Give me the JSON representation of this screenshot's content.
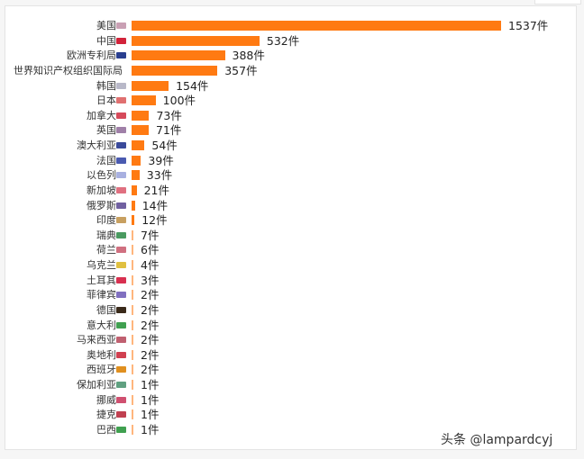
{
  "chart_data": {
    "type": "bar",
    "orientation": "horizontal",
    "title": "",
    "xlabel": "",
    "ylabel": "",
    "unit": "件",
    "categories": [
      "美国",
      "中国",
      "欧洲专利局",
      "世界知识产权组织国际局",
      "韩国",
      "日本",
      "加拿大",
      "英国",
      "澳大利亚",
      "法国",
      "以色列",
      "新加坡",
      "俄罗斯",
      "印度",
      "瑞典",
      "荷兰",
      "乌克兰",
      "土耳其",
      "菲律宾",
      "德国",
      "意大利",
      "马来西亚",
      "奥地利",
      "西班牙",
      "保加利亚",
      "挪威",
      "捷克",
      "巴西"
    ],
    "values": [
      1537,
      532,
      388,
      357,
      154,
      100,
      73,
      71,
      54,
      39,
      33,
      21,
      14,
      12,
      7,
      6,
      4,
      3,
      2,
      2,
      2,
      2,
      2,
      2,
      1,
      1,
      1,
      1
    ],
    "value_labels": [
      "1537件",
      "532件",
      "388件",
      "357件",
      "154件",
      "100件",
      "73件",
      "71件",
      "54件",
      "39件",
      "33件",
      "21件",
      "14件",
      "12件",
      "7件",
      "6件",
      "4件",
      "3件",
      "2件",
      "2件",
      "2件",
      "2件",
      "2件",
      "2件",
      "1件",
      "1件",
      "1件",
      "1件"
    ],
    "flags": [
      "us-flag-icon",
      "cn-flag-icon",
      "eu-flag-icon",
      "",
      "kr-flag-icon",
      "jp-flag-icon",
      "ca-flag-icon",
      "gb-flag-icon",
      "au-flag-icon",
      "fr-flag-icon",
      "il-flag-icon",
      "sg-flag-icon",
      "ru-flag-icon",
      "in-flag-icon",
      "se-flag-icon",
      "nl-flag-icon",
      "ua-flag-icon",
      "tr-flag-icon",
      "ph-flag-icon",
      "de-flag-icon",
      "it-flag-icon",
      "my-flag-icon",
      "at-flag-icon",
      "es-flag-icon",
      "bg-flag-icon",
      "no-flag-icon",
      "cz-flag-icon",
      "br-flag-icon"
    ],
    "flag_colors": [
      "#c9a0b4",
      "#d2233a",
      "#2a3f8f",
      "",
      "#b8b8c8",
      "#e07070",
      "#d64a5a",
      "#a080a8",
      "#3a4a9a",
      "#4a5ab0",
      "#a8b0e0",
      "#e07080",
      "#7060a0",
      "#c8a060",
      "#4a9a60",
      "#d07080",
      "#e0c040",
      "#d83050",
      "#8070c0",
      "#3a2a1a",
      "#40a050",
      "#c06070",
      "#d04050",
      "#e09020",
      "#60a080",
      "#d05070",
      "#c04050",
      "#40a050"
    ],
    "bar_color": "#ff7a12",
    "grid": false,
    "legend": null,
    "xlim": [
      0,
      1537
    ]
  },
  "watermark": "头条 @lampardcyj"
}
